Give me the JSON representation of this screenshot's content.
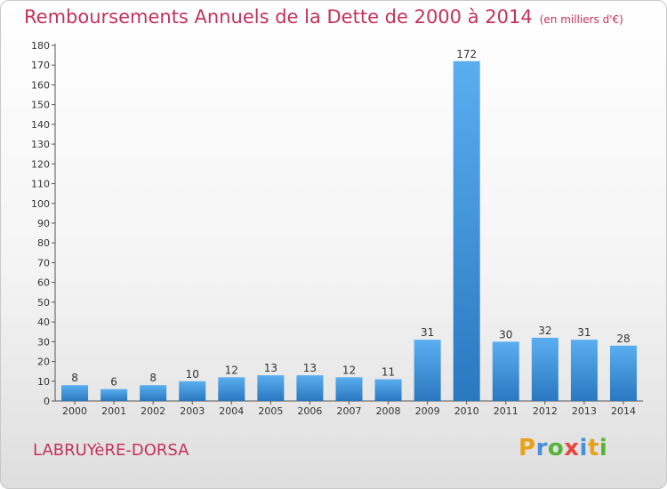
{
  "header": {
    "title": "Remboursements Annuels de la Dette de 2000 à 2014",
    "unit": "(en milliers d'€)"
  },
  "footer": {
    "commune": "LABRUYèRE-DORSA",
    "brand_letters": [
      "P",
      "r",
      "o",
      "x",
      "i",
      "t",
      "i"
    ],
    "brand_colors": [
      "#e8a21a",
      "#4a90d9",
      "#58b33a",
      "#e8463c",
      "#4a90d9",
      "#e8a21a",
      "#58b33a"
    ]
  },
  "chart_data": {
    "type": "bar",
    "title": "Remboursements Annuels de la Dette de 2000 à 2014",
    "subtitle": "(en milliers d'€)",
    "categories": [
      "2000",
      "2001",
      "2002",
      "2003",
      "2004",
      "2005",
      "2006",
      "2007",
      "2008",
      "2009",
      "2010",
      "2011",
      "2012",
      "2013",
      "2014"
    ],
    "values": [
      8,
      6,
      8,
      10,
      12,
      13,
      13,
      12,
      11,
      31,
      172,
      30,
      32,
      31,
      28
    ],
    "ylim": [
      0,
      180
    ],
    "yticks": [
      0,
      10,
      20,
      30,
      40,
      50,
      60,
      70,
      80,
      90,
      100,
      110,
      120,
      130,
      140,
      150,
      160,
      170,
      180
    ],
    "grid": false,
    "legend": "none",
    "bar_color_top": "#5aaef0",
    "bar_color_bottom": "#2a78c0"
  }
}
